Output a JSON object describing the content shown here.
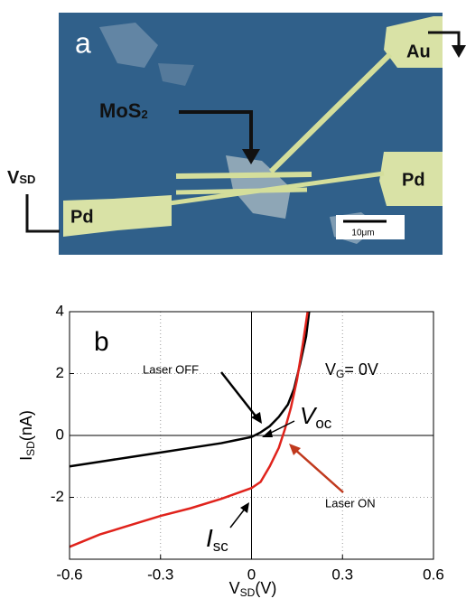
{
  "panel_a": {
    "label": "a",
    "material": {
      "text": "MoS",
      "sub": "2"
    },
    "top_pad": "Au",
    "right_pad": "Pd",
    "left_pad": "Pd",
    "bias": {
      "text": "V",
      "sub": "SD"
    },
    "scale_bar": "10μm"
  },
  "chart_data": {
    "type": "line",
    "panel_label": "b",
    "x_label": {
      "text": "V",
      "sub": "SD",
      "unit": "(V)"
    },
    "y_label": {
      "text": "I",
      "sub": "SD",
      "unit": "(nA)"
    },
    "gate_label": {
      "text": "V",
      "sub": "G",
      "rest": "= 0V"
    },
    "voc_label": {
      "text": "V",
      "sub": "oc"
    },
    "isc_label": {
      "text": "I",
      "sub": "sc"
    },
    "xlim": [
      -0.6,
      0.6
    ],
    "ylim": [
      -4,
      4
    ],
    "xticks": [
      -0.6,
      -0.3,
      0,
      0.3,
      0.6
    ],
    "yticks": [
      -2,
      0,
      2,
      4
    ],
    "grid": true,
    "series": [
      {
        "name": "Laser OFF",
        "color": "#000000",
        "x": [
          -0.6,
          -0.5,
          -0.4,
          -0.3,
          -0.2,
          -0.1,
          0,
          0.03,
          0.06,
          0.09,
          0.12,
          0.14,
          0.16,
          0.18,
          0.19
        ],
        "values": [
          -1.0,
          -0.85,
          -0.7,
          -0.55,
          -0.4,
          -0.25,
          -0.05,
          0.1,
          0.3,
          0.6,
          1.0,
          1.5,
          2.3,
          3.2,
          4.0
        ]
      },
      {
        "name": "Laser ON",
        "color": "#e0231c",
        "x": [
          -0.6,
          -0.5,
          -0.4,
          -0.3,
          -0.2,
          -0.1,
          0,
          0.03,
          0.06,
          0.09,
          0.11,
          0.13,
          0.15,
          0.17,
          0.185
        ],
        "values": [
          -3.6,
          -3.2,
          -2.9,
          -2.6,
          -2.35,
          -2.05,
          -1.7,
          -1.5,
          -1.0,
          -0.4,
          0.2,
          0.9,
          1.8,
          3.0,
          4.0
        ]
      }
    ]
  }
}
